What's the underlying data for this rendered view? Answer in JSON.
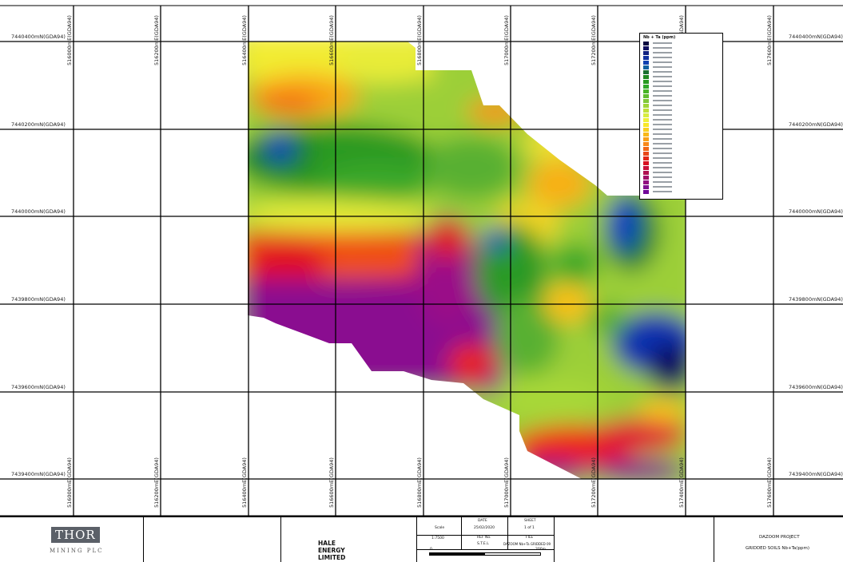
{
  "map": {
    "northing_labels": [
      "7440400mN(GDA94)",
      "7440200mN(GDA94)",
      "7440000mN(GDA94)",
      "7439800mN(GDA94)",
      "7439600mN(GDA94)",
      "7439400mN(GDA94)"
    ],
    "easting_labels": [
      "516000mE(GDA94)",
      "516200mE(GDA94)",
      "516400mE(GDA94)",
      "516600mE(GDA94)",
      "516800mE(GDA94)",
      "517000mE(GDA94)",
      "517200mE(GDA94)",
      "517400mE(GDA94)",
      "517600mE(GDA94)"
    ],
    "colors": {
      "ramp_high_to_low": [
        "#1a0060",
        "#0a0a8a",
        "#1040d0",
        "#1a8a1a",
        "#38a828",
        "#6cc030",
        "#a8d838",
        "#d8ec40",
        "#f4f028",
        "#f8c818",
        "#f89018",
        "#f05018",
        "#e01010",
        "#c81040",
        "#a01078",
        "#8a1090"
      ],
      "grid": "#000000"
    }
  },
  "legend": {
    "title": "Nb + Ta (ppm)",
    "swatches": [
      "#0a0a40",
      "#101060",
      "#102080",
      "#1030a0",
      "#1040b0",
      "#1060a0",
      "#1a7030",
      "#208a20",
      "#289a20",
      "#30a828",
      "#48b428",
      "#60bc30",
      "#80c838",
      "#a0d438",
      "#c0e038",
      "#d8ec40",
      "#eef038",
      "#f8e828",
      "#f8d020",
      "#f8b818",
      "#f8a018",
      "#f88818",
      "#f06818",
      "#e84818",
      "#e02818",
      "#d81020",
      "#c81038",
      "#b01050",
      "#a01068",
      "#901080",
      "#801090",
      "#700898"
    ]
  },
  "title_block": {
    "logo_main": "THOR",
    "logo_sub": "MINING PLC",
    "company": "HALE ENERGY LIMITED",
    "scale_label": "Scale",
    "scale_value": "1:7500",
    "date_label": "DATE",
    "date_value": "25/02/2020",
    "sheet_label": "SHEET",
    "sheet_value": "1 of 1",
    "ref_label": "REF No.",
    "ref_value": "S.T.E.L",
    "file_label": "FILE",
    "file_value": "DAZOOM Nb+Ta GRIDDED 09",
    "scale_start": "0",
    "scale_end": "200m",
    "project": "DAZOOM PROJECT",
    "subtitle": "GRIDDED SOILS Nb+Ta(ppm)"
  }
}
